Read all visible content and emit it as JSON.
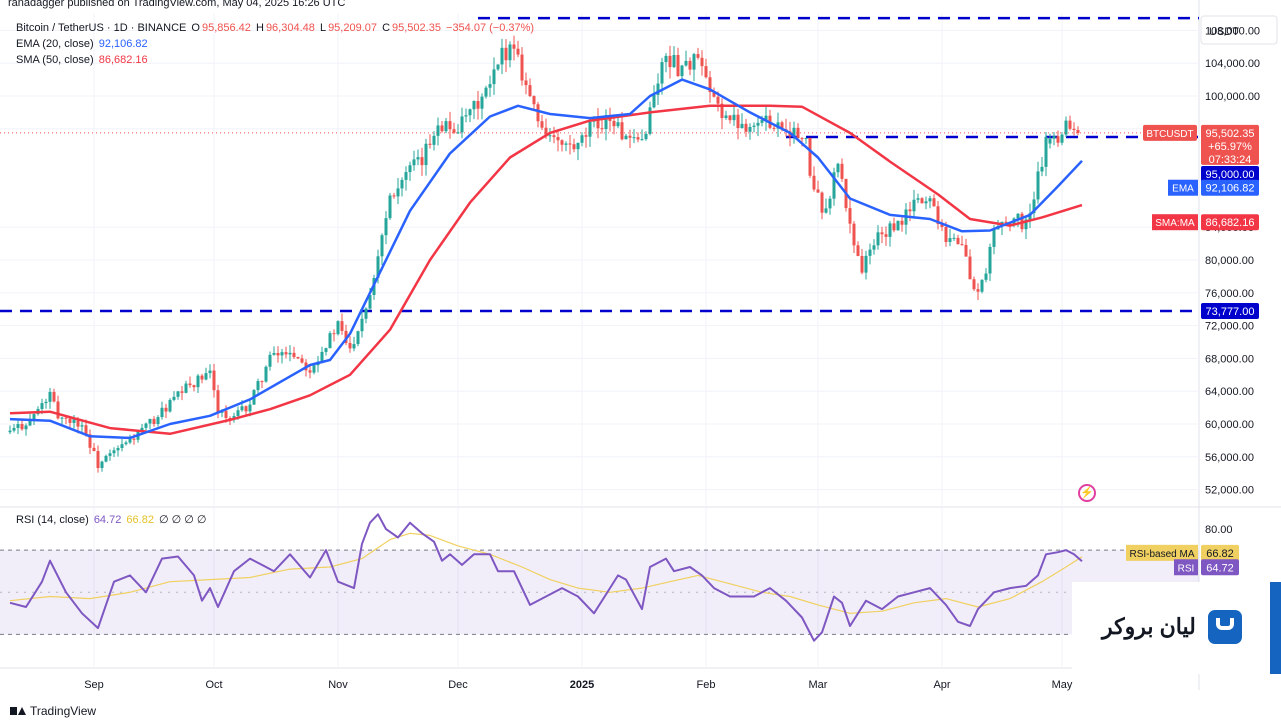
{
  "publisher_line": "ranadagger published on TradingView.com, May 04, 2025 16:26 UTC",
  "legend": {
    "symbol": "Bitcoin / TetherUS · 1D · BINANCE",
    "o_k": "O",
    "o_v": "95,856.42",
    "h_k": "H",
    "h_v": "96,304.48",
    "l_k": "L",
    "l_v": "95,209.07",
    "c_k": "C",
    "c_v": "95,502.35",
    "chg": "−354.07 (−0.37%)",
    "ema_label": "EMA (20, close)",
    "ema_value": "92,106.82",
    "sma_label": "SMA (50, close)",
    "sma_value": "86,682.16",
    "rsi_label": "RSI (14, close)",
    "rsi_value": "64.72",
    "rsi_ma_value": "66.82",
    "rsi_extra": "∅ ∅ ∅ ∅"
  },
  "price_axis": {
    "currency": "USDT",
    "ticks": [
      "108,000.00",
      "104,000.00",
      "100,000.00",
      "96,000.00",
      "84,000.00",
      "80,000.00",
      "76,000.00",
      "72,000.00",
      "68,000.00",
      "64,000.00",
      "60,000.00",
      "56,000.00",
      "52,000.00"
    ],
    "tick_values": [
      108000,
      104000,
      100000,
      96000,
      84000,
      80000,
      76000,
      72000,
      68000,
      64000,
      60000,
      56000,
      52000
    ],
    "ylim": [
      50000,
      110000
    ]
  },
  "rsi_axis": {
    "ticks": [
      "80.00",
      "60.00"
    ],
    "tick_values": [
      80,
      60
    ],
    "ylim": [
      15,
      90
    ],
    "upper": 70,
    "lower": 30
  },
  "time_axis": {
    "labels": [
      "Sep",
      "Oct",
      "Nov",
      "Dec",
      "2025",
      "Feb",
      "Mar",
      "Apr",
      "May"
    ],
    "label_days": [
      21,
      51,
      82,
      112,
      143,
      174,
      202,
      233,
      263
    ]
  },
  "badges": {
    "symbol": "BTCUSDT",
    "price": "95,502.35",
    "change": "+65.97%",
    "countdown": "07:33:24",
    "level_95k": "95,000.00",
    "ema_tag": "EMA",
    "ema_value": "92,106.82",
    "sma_tag": "SMA:MA",
    "sma_value": "86,682.16",
    "level_73k": "73,777.00",
    "rsi_ma_tag": "RSI-based MA",
    "rsi_ma_value": "66.82",
    "rsi_tag": "RSI",
    "rsi_value": "64.72"
  },
  "watermark": {
    "text": "لیان بروکر"
  },
  "footer": {
    "brand": "TradingView"
  },
  "colors": {
    "up": "#26a69a",
    "down": "#ef5350",
    "ema": "#2962ff",
    "sma": "#f23645",
    "level": "#0000cc",
    "rsi": "#7e57c2",
    "rsi_ma": "#f0d060",
    "rsi_band": "#7e57c2"
  },
  "chart_data": [
    {
      "type": "candlestick",
      "title": "Bitcoin / TetherUS · 1D · BINANCE",
      "x_unit": "days since 2024-08-11 (daily candles)",
      "ylim": [
        50000,
        110000
      ],
      "horizontal_levels": [
        109500,
        95000,
        73777
      ],
      "series": [
        {
          "name": "EMA (20, close)",
          "points": [
            [
              0,
              60600
            ],
            [
              10,
              60400
            ],
            [
              20,
              58500
            ],
            [
              30,
              58300
            ],
            [
              40,
              60000
            ],
            [
              50,
              61000
            ],
            [
              60,
              63000
            ],
            [
              70,
              65800
            ],
            [
              75,
              67200
            ],
            [
              80,
              67800
            ],
            [
              85,
              71000
            ],
            [
              90,
              76000
            ],
            [
              100,
              86000
            ],
            [
              110,
              93000
            ],
            [
              120,
              97500
            ],
            [
              127,
              98800
            ],
            [
              135,
              97800
            ],
            [
              145,
              97300
            ],
            [
              155,
              97800
            ],
            [
              160,
              100000
            ],
            [
              168,
              102000
            ],
            [
              175,
              100800
            ],
            [
              185,
              98000
            ],
            [
              195,
              95500
            ],
            [
              202,
              92500
            ],
            [
              210,
              87500
            ],
            [
              220,
              85500
            ],
            [
              230,
              85000
            ],
            [
              238,
              83500
            ],
            [
              245,
              83600
            ],
            [
              255,
              85500
            ],
            [
              262,
              89000
            ],
            [
              268,
              92100
            ]
          ]
        },
        {
          "name": "SMA (50, close)",
          "points": [
            [
              0,
              61300
            ],
            [
              10,
              61500
            ],
            [
              25,
              59500
            ],
            [
              40,
              58800
            ],
            [
              55,
              60500
            ],
            [
              65,
              61800
            ],
            [
              75,
              63500
            ],
            [
              85,
              66000
            ],
            [
              95,
              71500
            ],
            [
              105,
              80000
            ],
            [
              115,
              87000
            ],
            [
              125,
              92500
            ],
            [
              135,
              95500
            ],
            [
              145,
              97000
            ],
            [
              160,
              98000
            ],
            [
              175,
              98800
            ],
            [
              190,
              98800
            ],
            [
              198,
              98700
            ],
            [
              210,
              95500
            ],
            [
              220,
              92000
            ],
            [
              232,
              88000
            ],
            [
              240,
              85000
            ],
            [
              250,
              84200
            ],
            [
              258,
              85200
            ],
            [
              268,
              86700
            ]
          ]
        }
      ],
      "price_path": [
        [
          0,
          59000
        ],
        [
          5,
          60500
        ],
        [
          10,
          63500
        ],
        [
          12,
          61000
        ],
        [
          18,
          60000
        ],
        [
          22,
          55000
        ],
        [
          26,
          56500
        ],
        [
          30,
          58000
        ],
        [
          36,
          60500
        ],
        [
          40,
          62500
        ],
        [
          45,
          64800
        ],
        [
          50,
          66000
        ],
        [
          52,
          62000
        ],
        [
          55,
          60300
        ],
        [
          60,
          62500
        ],
        [
          65,
          68000
        ],
        [
          70,
          69000
        ],
        [
          75,
          66800
        ],
        [
          80,
          70500
        ],
        [
          82,
          72000
        ],
        [
          85,
          69000
        ],
        [
          90,
          76000
        ],
        [
          95,
          88000
        ],
        [
          100,
          91000
        ],
        [
          103,
          92000
        ],
        [
          107,
          97000
        ],
        [
          110,
          96000
        ],
        [
          113,
          96500
        ],
        [
          120,
          101000
        ],
        [
          123,
          105000
        ],
        [
          126,
          106500
        ],
        [
          128,
          103000
        ],
        [
          132,
          97000
        ],
        [
          137,
          94000
        ],
        [
          142,
          93500
        ],
        [
          145,
          96000
        ],
        [
          150,
          97500
        ],
        [
          155,
          94000
        ],
        [
          158,
          94500
        ],
        [
          162,
          102000
        ],
        [
          164,
          105000
        ],
        [
          167,
          103500
        ],
        [
          172,
          104500
        ],
        [
          175,
          100000
        ],
        [
          180,
          97000
        ],
        [
          185,
          96500
        ],
        [
          190,
          97000
        ],
        [
          195,
          96000
        ],
        [
          199,
          94000
        ],
        [
          201,
          88000
        ],
        [
          204,
          86000
        ],
        [
          207,
          92000
        ],
        [
          210,
          84000
        ],
        [
          213,
          79000
        ],
        [
          217,
          83000
        ],
        [
          222,
          84000
        ],
        [
          226,
          87000
        ],
        [
          230,
          87500
        ],
        [
          234,
          83000
        ],
        [
          238,
          82000
        ],
        [
          241,
          76000
        ],
        [
          244,
          78000
        ],
        [
          246,
          84000
        ],
        [
          250,
          85000
        ],
        [
          254,
          84500
        ],
        [
          256,
          87500
        ],
        [
          259,
          94500
        ],
        [
          262,
          94000
        ],
        [
          265,
          95000
        ],
        [
          268,
          95500
        ]
      ],
      "candles": [
        [
          260,
          94200,
          95400,
          93600,
          94800
        ],
        [
          261,
          94800,
          95600,
          94000,
          95100
        ],
        [
          262,
          95100,
          95800,
          93800,
          94300
        ],
        [
          263,
          94300,
          95600,
          94000,
          95300
        ],
        [
          264,
          95300,
          97500,
          95000,
          97000
        ],
        [
          265,
          97000,
          97600,
          95800,
          96000
        ],
        [
          266,
          96000,
          96800,
          95200,
          95856
        ],
        [
          267,
          95856,
          96304,
          95209,
          95502
        ]
      ]
    },
    {
      "type": "line",
      "title": "RSI (14, close)",
      "x_unit": "days since 2024-08-11",
      "ylim": [
        15,
        90
      ],
      "bands": [
        30,
        70
      ],
      "series": [
        {
          "name": "RSI",
          "points": [
            [
              0,
              45
            ],
            [
              4,
              43
            ],
            [
              8,
              55
            ],
            [
              10,
              65
            ],
            [
              14,
              50
            ],
            [
              18,
              40
            ],
            [
              22,
              33
            ],
            [
              26,
              55
            ],
            [
              30,
              58
            ],
            [
              34,
              50
            ],
            [
              38,
              66
            ],
            [
              42,
              67
            ],
            [
              46,
              58
            ],
            [
              48,
              46
            ],
            [
              50,
              52
            ],
            [
              52,
              43
            ],
            [
              56,
              60
            ],
            [
              60,
              66
            ],
            [
              64,
              62
            ],
            [
              66,
              60
            ],
            [
              70,
              68
            ],
            [
              75,
              57
            ],
            [
              79,
              70
            ],
            [
              82,
              55
            ],
            [
              86,
              52
            ],
            [
              88,
              73
            ],
            [
              90,
              83
            ],
            [
              92,
              87
            ],
            [
              94,
              80
            ],
            [
              97,
              76
            ],
            [
              100,
              83
            ],
            [
              103,
              78
            ],
            [
              106,
              74
            ],
            [
              108,
              65
            ],
            [
              110,
              68
            ],
            [
              113,
              63
            ],
            [
              116,
              68
            ],
            [
              120,
              68
            ],
            [
              122,
              60
            ],
            [
              126,
              60
            ],
            [
              130,
              44
            ],
            [
              134,
              48
            ],
            [
              138,
              52
            ],
            [
              142,
              48
            ],
            [
              146,
              40
            ],
            [
              150,
              52
            ],
            [
              152,
              58
            ],
            [
              154,
              56
            ],
            [
              158,
              42
            ],
            [
              160,
              62
            ],
            [
              164,
              66
            ],
            [
              166,
              60
            ],
            [
              170,
              62
            ],
            [
              173,
              58
            ],
            [
              176,
              52
            ],
            [
              180,
              48
            ],
            [
              186,
              48
            ],
            [
              190,
              52
            ],
            [
              194,
              46
            ],
            [
              198,
              38
            ],
            [
              201,
              27
            ],
            [
              203,
              31
            ],
            [
              206,
              48
            ],
            [
              208,
              45
            ],
            [
              210,
              34
            ],
            [
              214,
              46
            ],
            [
              218,
              42
            ],
            [
              222,
              48
            ],
            [
              226,
              50
            ],
            [
              230,
              52
            ],
            [
              234,
              44
            ],
            [
              237,
              36
            ],
            [
              240,
              34
            ],
            [
              242,
              42
            ],
            [
              246,
              50
            ],
            [
              250,
              52
            ],
            [
              254,
              53
            ],
            [
              257,
              58
            ],
            [
              259,
              68
            ],
            [
              262,
              69
            ],
            [
              264,
              70
            ],
            [
              266,
              68
            ],
            [
              268,
              64.72
            ]
          ]
        },
        {
          "name": "RSI-based MA",
          "points": [
            [
              0,
              46
            ],
            [
              10,
              48
            ],
            [
              20,
              47
            ],
            [
              30,
              50
            ],
            [
              40,
              55
            ],
            [
              50,
              56
            ],
            [
              60,
              57
            ],
            [
              70,
              61
            ],
            [
              80,
              62
            ],
            [
              88,
              66
            ],
            [
              95,
              75
            ],
            [
              100,
              78
            ],
            [
              105,
              77
            ],
            [
              112,
              72
            ],
            [
              120,
              68
            ],
            [
              128,
              62
            ],
            [
              135,
              56
            ],
            [
              142,
              52
            ],
            [
              150,
              50
            ],
            [
              158,
              52
            ],
            [
              165,
              55
            ],
            [
              172,
              58
            ],
            [
              180,
              54
            ],
            [
              188,
              50
            ],
            [
              195,
              48
            ],
            [
              202,
              44
            ],
            [
              210,
              40
            ],
            [
              218,
              41
            ],
            [
              226,
              45
            ],
            [
              234,
              47
            ],
            [
              242,
              43
            ],
            [
              250,
              47
            ],
            [
              258,
              55
            ],
            [
              264,
              62
            ],
            [
              268,
              66.82
            ]
          ]
        }
      ]
    }
  ]
}
